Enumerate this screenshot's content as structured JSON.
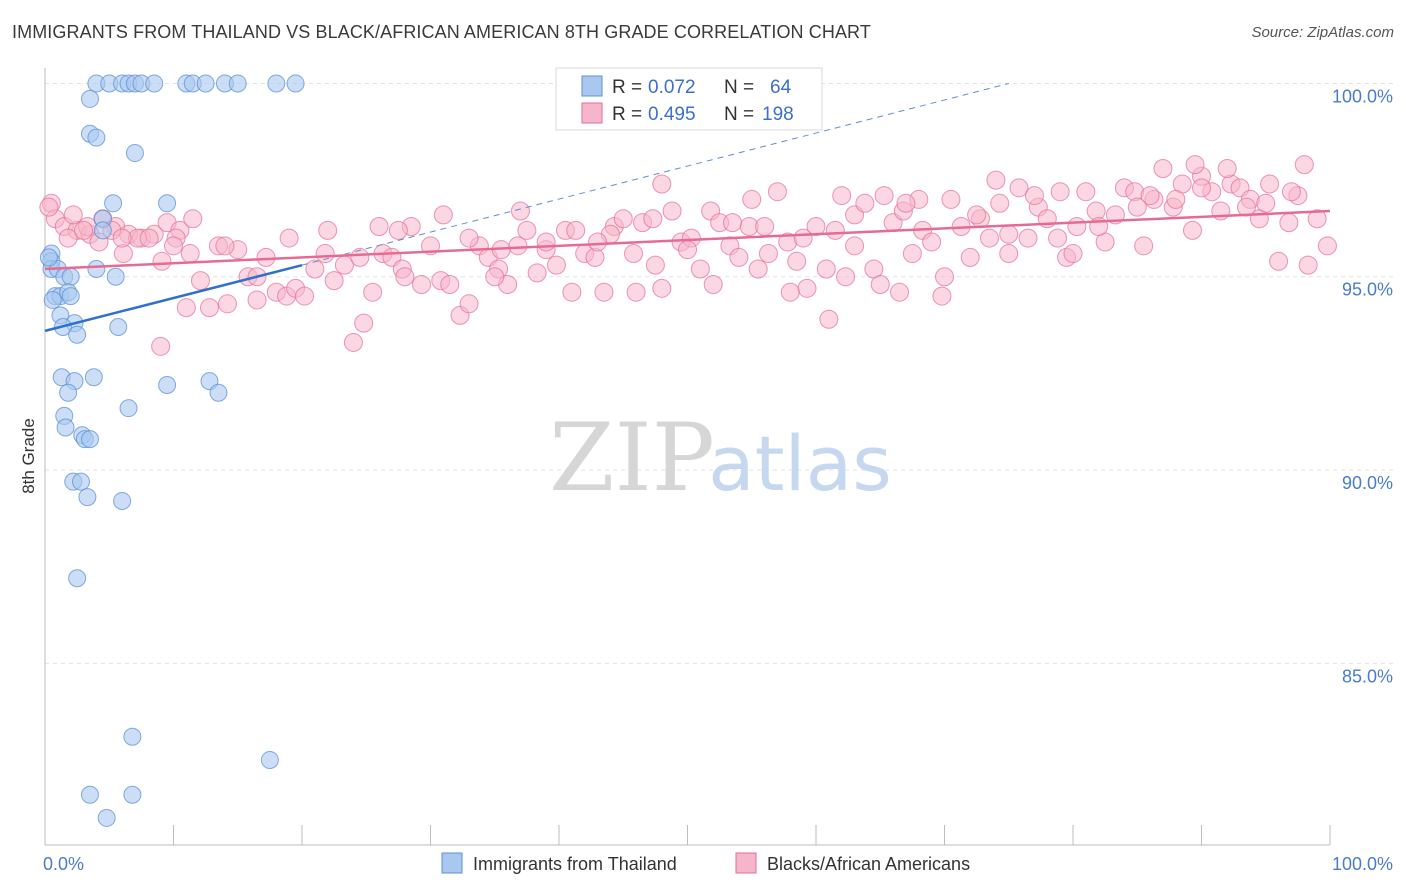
{
  "title": "IMMIGRANTS FROM THAILAND VS BLACK/AFRICAN AMERICAN 8TH GRADE CORRELATION CHART",
  "source": "Source: ZipAtlas.com",
  "watermark": {
    "zip": "ZIP",
    "atlas": "atlas"
  },
  "colors": {
    "blue": "#5b8fd6",
    "blue_fill": "#a9c8f0",
    "pink": "#e66b93",
    "pink_fill": "#f5b6cb",
    "axis_text": "#4a7cc9"
  },
  "chart_data": {
    "type": "scatter",
    "title": "IMMIGRANTS FROM THAILAND VS BLACK/AFRICAN AMERICAN 8TH GRADE CORRELATION CHART",
    "xlabel": "",
    "ylabel": "8th Grade",
    "xlim": [
      0,
      100
    ],
    "ylim": [
      80.3,
      100.4
    ],
    "y_ticks": [
      {
        "v": 85,
        "label": "85.0%"
      },
      {
        "v": 90,
        "label": "90.0%"
      },
      {
        "v": 95,
        "label": "95.0%"
      },
      {
        "v": 100,
        "label": "100.0%"
      }
    ],
    "x_tick_labels": {
      "min": "0.0%",
      "max": "100.0%"
    },
    "legend": {
      "position": "top-center",
      "rows": [
        {
          "r_label": "R =",
          "r": "0.072",
          "n_label": "N =",
          "n": "64"
        },
        {
          "r_label": "R =",
          "r": "0.495",
          "n_label": "N =",
          "n": "198"
        }
      ]
    },
    "bottom_legend": [
      "Immigrants from Thailand",
      "Blacks/African Americans"
    ],
    "series": [
      {
        "name": "Immigrants from Thailand",
        "color": "#5b8fd6",
        "trend": {
          "x0": 0,
          "y0": 93.6,
          "x1": 20,
          "y1": 95.3
        },
        "trend_ext": {
          "x0": 20,
          "y0": 95.3,
          "x1": 75,
          "y1": 100.0
        },
        "points": [
          [
            4,
            100
          ],
          [
            5,
            100
          ],
          [
            6,
            100
          ],
          [
            6.5,
            100
          ],
          [
            7,
            100
          ],
          [
            7.5,
            100
          ],
          [
            8.5,
            100
          ],
          [
            11,
            100
          ],
          [
            11.5,
            100
          ],
          [
            12.5,
            100
          ],
          [
            14,
            100
          ],
          [
            15,
            100
          ],
          [
            18,
            100
          ],
          [
            19.5,
            100
          ],
          [
            3.5,
            99.6
          ],
          [
            3.5,
            98.7
          ],
          [
            4,
            98.6
          ],
          [
            7,
            98.2
          ],
          [
            5.3,
            96.9
          ],
          [
            9.5,
            96.9
          ],
          [
            4.5,
            96.5
          ],
          [
            4.5,
            96.2
          ],
          [
            0.5,
            95.6
          ],
          [
            0.5,
            95.4
          ],
          [
            0.5,
            95.2
          ],
          [
            1,
            95.2
          ],
          [
            4,
            95.2
          ],
          [
            1.5,
            95.0
          ],
          [
            2,
            95.0
          ],
          [
            5.5,
            95.0
          ],
          [
            0.8,
            94.5
          ],
          [
            1.2,
            94.5
          ],
          [
            1.8,
            94.6
          ],
          [
            0.6,
            94.4
          ],
          [
            1.2,
            94.0
          ],
          [
            2.3,
            93.8
          ],
          [
            1.4,
            93.7
          ],
          [
            5.7,
            93.7
          ],
          [
            2.5,
            93.5
          ],
          [
            1.3,
            92.4
          ],
          [
            2.3,
            92.3
          ],
          [
            3.8,
            92.4
          ],
          [
            9.5,
            92.2
          ],
          [
            12.8,
            92.3
          ],
          [
            13.5,
            92.0
          ],
          [
            1.8,
            92.0
          ],
          [
            6.5,
            91.6
          ],
          [
            1.5,
            91.4
          ],
          [
            1.6,
            91.1
          ],
          [
            2.9,
            90.9
          ],
          [
            3.1,
            90.8
          ],
          [
            3.5,
            90.8
          ],
          [
            2.2,
            89.7
          ],
          [
            2.8,
            89.7
          ],
          [
            3.3,
            89.3
          ],
          [
            6.0,
            89.2
          ],
          [
            2.5,
            87.2
          ],
          [
            6.8,
            83.1
          ],
          [
            17.5,
            82.5
          ],
          [
            3.5,
            81.6
          ],
          [
            6.8,
            81.6
          ],
          [
            4.8,
            81.0
          ],
          [
            0.3,
            95.5
          ],
          [
            2.0,
            94.5
          ]
        ]
      },
      {
        "name": "Blacks/African Americans",
        "color": "#e66b93",
        "trend": {
          "x0": 0,
          "y0": 95.2,
          "x1": 100,
          "y1": 96.7
        },
        "points": [
          [
            0.5,
            96.9
          ],
          [
            0.8,
            96.5
          ],
          [
            1.5,
            96.3
          ],
          [
            2.5,
            96.2
          ],
          [
            3.5,
            96.1
          ],
          [
            4.5,
            96.5
          ],
          [
            5.5,
            96.3
          ],
          [
            6.5,
            96.1
          ],
          [
            7.5,
            96.0
          ],
          [
            8.5,
            96.1
          ],
          [
            9.5,
            96.4
          ],
          [
            10.5,
            96.2
          ],
          [
            11.5,
            96.5
          ],
          [
            1.8,
            96.0
          ],
          [
            2.2,
            96.6
          ],
          [
            3.3,
            96.3
          ],
          [
            4.2,
            95.9
          ],
          [
            5.2,
            96.2
          ],
          [
            6.1,
            95.6
          ],
          [
            7.2,
            96.0
          ],
          [
            8.1,
            96.0
          ],
          [
            9.1,
            95.4
          ],
          [
            10.2,
            96.0
          ],
          [
            11.3,
            95.6
          ],
          [
            12.1,
            94.9
          ],
          [
            12.8,
            94.2
          ],
          [
            13.5,
            95.8
          ],
          [
            14.2,
            94.3
          ],
          [
            15.0,
            95.7
          ],
          [
            15.8,
            95.0
          ],
          [
            16.5,
            94.4
          ],
          [
            17.2,
            95.5
          ],
          [
            18.0,
            94.6
          ],
          [
            18.8,
            94.5
          ],
          [
            19.5,
            94.7
          ],
          [
            20.2,
            94.5
          ],
          [
            21.0,
            95.2
          ],
          [
            21.8,
            95.6
          ],
          [
            22.5,
            94.9
          ],
          [
            23.3,
            95.3
          ],
          [
            24.0,
            93.3
          ],
          [
            24.8,
            93.8
          ],
          [
            25.5,
            94.6
          ],
          [
            26.3,
            95.6
          ],
          [
            27.0,
            95.5
          ],
          [
            27.8,
            95.2
          ],
          [
            28.5,
            96.3
          ],
          [
            29.3,
            94.8
          ],
          [
            30.0,
            95.8
          ],
          [
            30.8,
            94.9
          ],
          [
            31.5,
            94.8
          ],
          [
            32.3,
            94.0
          ],
          [
            33.0,
            94.3
          ],
          [
            33.8,
            95.8
          ],
          [
            34.5,
            95.5
          ],
          [
            35.3,
            95.2
          ],
          [
            36.0,
            94.8
          ],
          [
            36.8,
            95.8
          ],
          [
            37.5,
            96.2
          ],
          [
            38.3,
            95.1
          ],
          [
            39.0,
            95.7
          ],
          [
            39.8,
            95.3
          ],
          [
            40.5,
            96.2
          ],
          [
            41.3,
            96.2
          ],
          [
            42.0,
            95.6
          ],
          [
            42.8,
            95.5
          ],
          [
            43.5,
            94.6
          ],
          [
            44.3,
            96.3
          ],
          [
            45.0,
            96.5
          ],
          [
            45.8,
            95.6
          ],
          [
            46.5,
            96.4
          ],
          [
            47.3,
            96.5
          ],
          [
            48.0,
            94.7
          ],
          [
            48.8,
            96.7
          ],
          [
            49.5,
            95.9
          ],
          [
            50.3,
            96.0
          ],
          [
            51.0,
            95.2
          ],
          [
            51.8,
            96.7
          ],
          [
            52.5,
            96.4
          ],
          [
            53.3,
            95.8
          ],
          [
            54.0,
            95.5
          ],
          [
            54.8,
            96.3
          ],
          [
            55.5,
            95.2
          ],
          [
            56.3,
            95.6
          ],
          [
            57.0,
            97.2
          ],
          [
            57.8,
            95.9
          ],
          [
            58.5,
            95.4
          ],
          [
            59.3,
            94.7
          ],
          [
            60.0,
            96.3
          ],
          [
            60.8,
            95.2
          ],
          [
            61.5,
            96.2
          ],
          [
            62.3,
            95.0
          ],
          [
            63.0,
            96.6
          ],
          [
            63.8,
            96.9
          ],
          [
            64.5,
            95.2
          ],
          [
            65.3,
            97.1
          ],
          [
            66.0,
            96.4
          ],
          [
            66.8,
            96.7
          ],
          [
            67.5,
            95.6
          ],
          [
            68.3,
            96.2
          ],
          [
            69.0,
            95.9
          ],
          [
            69.8,
            94.5
          ],
          [
            70.5,
            97.0
          ],
          [
            71.3,
            96.3
          ],
          [
            72.0,
            95.5
          ],
          [
            72.8,
            96.5
          ],
          [
            73.5,
            96.0
          ],
          [
            74.3,
            96.9
          ],
          [
            75.0,
            95.6
          ],
          [
            75.8,
            97.3
          ],
          [
            76.5,
            96.0
          ],
          [
            77.3,
            96.8
          ],
          [
            78.0,
            96.5
          ],
          [
            78.8,
            96.0
          ],
          [
            79.5,
            95.5
          ],
          [
            80.3,
            96.3
          ],
          [
            81.0,
            97.2
          ],
          [
            81.8,
            96.7
          ],
          [
            82.5,
            95.9
          ],
          [
            83.3,
            96.6
          ],
          [
            84.0,
            97.3
          ],
          [
            84.8,
            97.2
          ],
          [
            85.5,
            95.8
          ],
          [
            86.3,
            97.0
          ],
          [
            87.0,
            97.8
          ],
          [
            87.8,
            96.8
          ],
          [
            88.5,
            97.4
          ],
          [
            89.3,
            96.2
          ],
          [
            90.0,
            97.6
          ],
          [
            90.8,
            97.2
          ],
          [
            91.5,
            96.7
          ],
          [
            92.3,
            97.4
          ],
          [
            93.0,
            97.3
          ],
          [
            93.8,
            97.0
          ],
          [
            94.5,
            96.5
          ],
          [
            95.3,
            97.4
          ],
          [
            96.0,
            95.4
          ],
          [
            96.8,
            96.4
          ],
          [
            97.5,
            97.1
          ],
          [
            98.3,
            95.3
          ],
          [
            99.0,
            96.5
          ],
          [
            99.8,
            95.8
          ],
          [
            98.0,
            97.9
          ],
          [
            92.0,
            97.8
          ],
          [
            89.5,
            97.9
          ],
          [
            86.0,
            97.1
          ],
          [
            79.0,
            97.2
          ],
          [
            74.0,
            97.5
          ],
          [
            68.0,
            97.0
          ],
          [
            62.0,
            97.1
          ],
          [
            55.0,
            97.0
          ],
          [
            48.0,
            97.4
          ],
          [
            37.0,
            96.7
          ],
          [
            26.0,
            96.3
          ],
          [
            16.5,
            95.0
          ],
          [
            9.0,
            93.2
          ],
          [
            22.0,
            96.2
          ],
          [
            31.0,
            96.6
          ],
          [
            35.0,
            95.0
          ],
          [
            41.0,
            94.6
          ],
          [
            46.0,
            94.6
          ],
          [
            52.0,
            94.8
          ],
          [
            58.0,
            94.6
          ],
          [
            65.0,
            94.8
          ],
          [
            70.0,
            95.0
          ],
          [
            75.0,
            96.1
          ],
          [
            80.0,
            95.6
          ],
          [
            85.0,
            96.8
          ],
          [
            90.0,
            97.3
          ],
          [
            95.0,
            96.9
          ],
          [
            97.0,
            97.2
          ],
          [
            63.0,
            95.8
          ],
          [
            56.0,
            96.3
          ],
          [
            50.0,
            95.7
          ],
          [
            44.0,
            96.1
          ],
          [
            39.0,
            95.9
          ],
          [
            33.0,
            96.0
          ],
          [
            28.0,
            95.0
          ],
          [
            24.5,
            95.5
          ],
          [
            19.0,
            96.0
          ],
          [
            14.0,
            95.8
          ],
          [
            10.0,
            95.8
          ],
          [
            6.0,
            96.0
          ],
          [
            3.0,
            96.2
          ],
          [
            67.0,
            96.9
          ],
          [
            72.5,
            96.6
          ],
          [
            77.0,
            97.1
          ],
          [
            82.0,
            96.3
          ],
          [
            88.0,
            97.0
          ],
          [
            93.5,
            96.8
          ],
          [
            27.5,
            96.2
          ],
          [
            35.5,
            95.7
          ],
          [
            43.0,
            95.9
          ],
          [
            59.0,
            96.0
          ],
          [
            66.5,
            94.6
          ],
          [
            61.0,
            93.9
          ],
          [
            53.5,
            96.4
          ],
          [
            47.5,
            95.3
          ],
          [
            11.0,
            94.2
          ],
          [
            0.3,
            96.8
          ]
        ]
      }
    ]
  }
}
